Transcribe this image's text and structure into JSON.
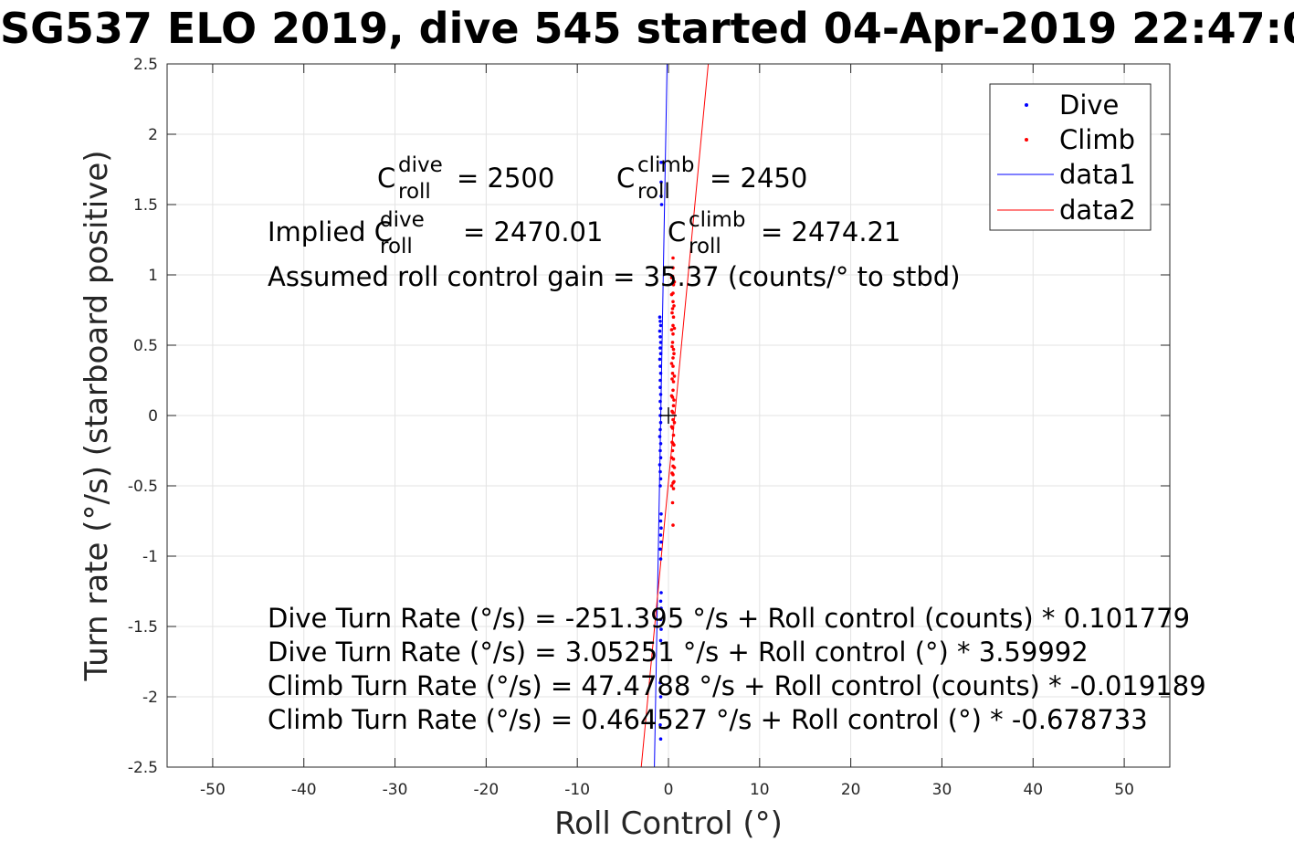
{
  "chart_data": {
    "type": "scatter",
    "title": "SG537 ELO 2019, dive 545 started 04-Apr-2019 22:47:0",
    "xlabel": "Roll Control (°)",
    "ylabel": "Turn rate (°/s) (starboard positive)",
    "xlim": [
      -55,
      55
    ],
    "ylim": [
      -2.5,
      2.5
    ],
    "grid": true,
    "xticks": [
      -50,
      -40,
      -30,
      -20,
      -10,
      0,
      10,
      20,
      30,
      40,
      50
    ],
    "xtick_labels": [
      "-50",
      "-40",
      "-30",
      "-20",
      "-10",
      "0",
      "10",
      "20",
      "30",
      "40",
      "50"
    ],
    "yticks": [
      2.5,
      2,
      1.5,
      1,
      0.5,
      0,
      -0.5,
      -1,
      -1.5,
      -2,
      -2.5
    ],
    "ytick_labels": [
      "2.5",
      "2",
      "1.5",
      "1",
      "0.5",
      "0",
      "-0.5",
      "-1",
      "-1.5",
      "-2",
      "-2.5"
    ],
    "legend_position": "top-right",
    "series": [
      {
        "name": "Dive",
        "kind": "scatter",
        "color": "#0000ff",
        "points": [
          [
            -0.8,
            1.8
          ],
          [
            -0.8,
            1.66
          ],
          [
            -0.8,
            1.56
          ],
          [
            -0.75,
            1.5
          ],
          [
            -0.95,
            0.7
          ],
          [
            -0.9,
            0.67
          ],
          [
            -0.85,
            0.64
          ],
          [
            -0.95,
            0.6
          ],
          [
            -0.9,
            0.56
          ],
          [
            -0.85,
            0.52
          ],
          [
            -0.9,
            0.48
          ],
          [
            -0.85,
            0.44
          ],
          [
            -0.95,
            0.4
          ],
          [
            -0.9,
            0.35
          ],
          [
            -0.85,
            0.3
          ],
          [
            -0.9,
            0.25
          ],
          [
            -0.9,
            0.2
          ],
          [
            -0.85,
            0.15
          ],
          [
            -0.9,
            0.1
          ],
          [
            -0.85,
            0.05
          ],
          [
            -0.9,
            0.0
          ],
          [
            -0.85,
            -0.05
          ],
          [
            -0.9,
            -0.1
          ],
          [
            -0.95,
            -0.15
          ],
          [
            -0.85,
            -0.2
          ],
          [
            -0.9,
            -0.25
          ],
          [
            -0.85,
            -0.3
          ],
          [
            -0.95,
            -0.35
          ],
          [
            -0.9,
            -0.4
          ],
          [
            -0.85,
            -0.45
          ],
          [
            -0.9,
            -0.5
          ],
          [
            -0.8,
            -0.7
          ],
          [
            -0.85,
            -0.75
          ],
          [
            -0.8,
            -0.8
          ],
          [
            -0.85,
            -0.85
          ],
          [
            -0.8,
            -0.9
          ],
          [
            -0.9,
            -0.95
          ],
          [
            -0.85,
            -1.02
          ],
          [
            -0.8,
            -1.26
          ],
          [
            -0.85,
            -1.32
          ],
          [
            -0.8,
            -1.37
          ],
          [
            -0.85,
            -1.45
          ],
          [
            -0.8,
            -1.52
          ],
          [
            -0.85,
            -1.6
          ],
          [
            -0.9,
            -1.9
          ],
          [
            -0.85,
            -2.0
          ],
          [
            -0.8,
            -2.1
          ],
          [
            -0.9,
            -2.2
          ],
          [
            -0.85,
            -2.3
          ]
        ]
      },
      {
        "name": "Climb",
        "kind": "scatter",
        "color": "#ff0000",
        "points": [
          [
            0.5,
            1.12
          ],
          [
            0.5,
            1.05
          ],
          [
            0.45,
            0.99
          ],
          [
            0.55,
            0.93
          ],
          [
            0.5,
            0.87
          ],
          [
            0.5,
            0.81
          ],
          [
            0.45,
            0.76
          ],
          [
            0.55,
            0.7
          ],
          [
            0.5,
            0.64
          ],
          [
            0.5,
            0.58
          ],
          [
            0.45,
            0.52
          ],
          [
            0.55,
            0.47
          ],
          [
            0.5,
            0.41
          ],
          [
            0.5,
            0.35
          ],
          [
            0.45,
            0.3
          ],
          [
            0.55,
            0.24
          ],
          [
            0.5,
            0.18
          ],
          [
            0.45,
            0.13
          ],
          [
            0.55,
            0.07
          ],
          [
            0.5,
            0.02
          ],
          [
            0.5,
            -0.03
          ],
          [
            0.45,
            -0.09
          ],
          [
            0.55,
            -0.14
          ],
          [
            0.5,
            -0.2
          ],
          [
            0.45,
            -0.25
          ],
          [
            0.55,
            -0.31
          ],
          [
            0.5,
            -0.36
          ],
          [
            0.5,
            -0.42
          ],
          [
            0.5,
            -0.48
          ],
          [
            0.55,
            -0.52
          ],
          [
            0.35,
            0.98
          ],
          [
            0.35,
            0.86
          ],
          [
            0.4,
            0.73
          ],
          [
            0.35,
            0.61
          ],
          [
            0.4,
            0.49
          ],
          [
            0.35,
            0.37
          ],
          [
            0.4,
            0.26
          ],
          [
            0.35,
            0.14
          ],
          [
            0.4,
            0.03
          ],
          [
            0.35,
            -0.08
          ],
          [
            0.4,
            -0.19
          ],
          [
            0.35,
            -0.3
          ],
          [
            0.4,
            -0.41
          ],
          [
            0.35,
            -0.5
          ],
          [
            0.65,
            0.95
          ],
          [
            0.6,
            0.78
          ],
          [
            0.65,
            0.62
          ],
          [
            0.6,
            0.44
          ],
          [
            0.65,
            0.28
          ],
          [
            0.6,
            0.11
          ],
          [
            0.65,
            -0.05
          ],
          [
            0.6,
            -0.21
          ],
          [
            0.65,
            -0.37
          ],
          [
            0.6,
            -0.47
          ],
          [
            0.45,
            -0.62
          ],
          [
            0.5,
            -0.78
          ]
        ]
      },
      {
        "name": "data1",
        "kind": "line",
        "color": "#0000ff",
        "points": [
          [
            -1.54,
            -2.5
          ],
          [
            -0.15,
            2.5
          ]
        ]
      },
      {
        "name": "data2",
        "kind": "line",
        "color": "#ff0000",
        "points": [
          [
            4.37,
            2.5
          ],
          [
            -2.99,
            -2.5
          ]
        ]
      },
      {
        "name": "",
        "kind": "marker",
        "color": "#000000",
        "points": [
          [
            0,
            0
          ]
        ]
      }
    ],
    "annotations": {
      "c_roll_dive": {
        "prefix": "C",
        "sup": "dive",
        "sub": "roll",
        "value": "= 2500"
      },
      "c_roll_climb": {
        "prefix": "C",
        "sup": "climb",
        "sub": "roll",
        "value": "= 2450"
      },
      "implied_dive": {
        "prefix": "Implied C",
        "sup": "dive",
        "sub": "roll",
        "value": "= 2470.01"
      },
      "implied_climb": {
        "prefix": "C",
        "sup": "climb",
        "sub": "roll",
        "value": "= 2474.21"
      },
      "gain": "Assumed roll control gain = 35.37 (counts/° to stbd)",
      "eq1": "Dive Turn Rate (°/s) = -251.395 °/s + Roll control (counts) * 0.101779",
      "eq2": "Dive Turn Rate (°/s) = 3.05251 °/s + Roll control (°) * 3.59992",
      "eq3": "Climb Turn Rate (°/s) = 47.4788 °/s + Roll control (counts) * -0.019189",
      "eq4": "Climb Turn Rate (°/s) = 0.464527 °/s + Roll control (°) * -0.678733"
    }
  }
}
